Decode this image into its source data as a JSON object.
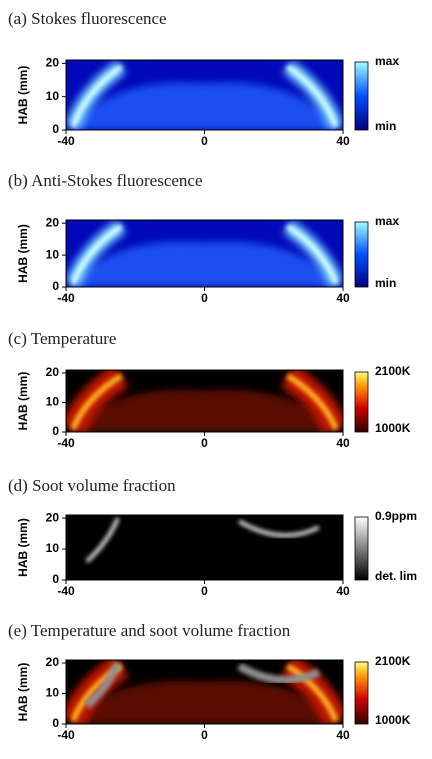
{
  "chart_data": [
    {
      "type": "heatmap",
      "title": "(a) Stokes fluorescence",
      "ylabel": "HAB (mm)",
      "xlim": [
        -40,
        40
      ],
      "ylim": [
        0,
        21
      ],
      "xticks": [
        -40,
        0,
        40
      ],
      "yticks": [
        0,
        10,
        20
      ],
      "colormap": "blue",
      "colorbar_labels": [
        "max",
        "min"
      ]
    },
    {
      "type": "heatmap",
      "title": "(b) Anti-Stokes fluorescence",
      "ylabel": "HAB (mm)",
      "xlim": [
        -40,
        40
      ],
      "ylim": [
        0,
        21
      ],
      "xticks": [
        -40,
        0,
        40
      ],
      "yticks": [
        0,
        10,
        20
      ],
      "colormap": "blue",
      "colorbar_labels": [
        "max",
        "min"
      ]
    },
    {
      "type": "heatmap",
      "title": "(c) Temperature",
      "ylabel": "HAB (mm)",
      "xlim": [
        -40,
        40
      ],
      "ylim": [
        0,
        21
      ],
      "xticks": [
        -40,
        0,
        40
      ],
      "yticks": [
        0,
        10,
        20
      ],
      "colormap": "hot",
      "colorbar_labels": [
        "2100K",
        "1000K"
      ]
    },
    {
      "type": "heatmap",
      "title": "(d) Soot volume fraction",
      "ylabel": "HAB (mm)",
      "xlim": [
        -40,
        40
      ],
      "ylim": [
        0,
        21
      ],
      "xticks": [
        -40,
        0,
        40
      ],
      "yticks": [
        0,
        10,
        20
      ],
      "colormap": "gray",
      "colorbar_labels": [
        "0.9ppm",
        "det. lim"
      ]
    },
    {
      "type": "heatmap",
      "title": "(e) Temperature and soot volume fraction",
      "ylabel": "HAB (mm)",
      "xlim": [
        -40,
        40
      ],
      "ylim": [
        0,
        21
      ],
      "xticks": [
        -40,
        0,
        40
      ],
      "yticks": [
        0,
        10,
        20
      ],
      "colormap": "hot+gray",
      "colorbar_labels": [
        "2100K",
        "1000K"
      ]
    }
  ]
}
